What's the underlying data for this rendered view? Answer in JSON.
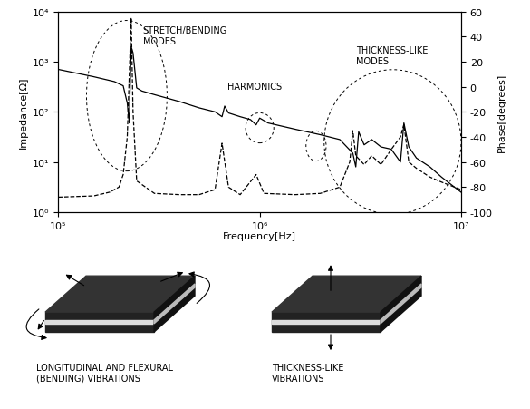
{
  "chart_data": {
    "type": "line",
    "x_label": "Frequency[Hz]",
    "y_label": "Impedance[Ω]",
    "y2_label": "Phase[degrees]",
    "log": true,
    "grid": false,
    "xlim": [
      100000,
      10000000
    ],
    "xticks": [
      {
        "value": 100000,
        "label": "10⁵"
      },
      {
        "value": 1000000,
        "label": "10⁶"
      },
      {
        "value": 10000000,
        "label": "10⁷"
      }
    ],
    "ylim": [
      1,
      10000
    ],
    "yticks": [
      {
        "value": 1,
        "label": "10⁰"
      },
      {
        "value": 10,
        "label": "10¹"
      },
      {
        "value": 100,
        "label": "10²"
      },
      {
        "value": 1000,
        "label": "10³"
      },
      {
        "value": 10000,
        "label": "10⁴"
      }
    ],
    "y2lim": [
      -100,
      60
    ],
    "y2ticks": [
      -100,
      -80,
      -60,
      -40,
      -20,
      0,
      20,
      40,
      60
    ],
    "annotations": [
      "STRETCH/BENDING\nMODES",
      "HARMONICS",
      "THICKNESS-LIKE\nMODES"
    ],
    "series": [
      {
        "color": "#000000",
        "line_style": "solid",
        "x": [
          100000,
          150000,
          190000,
          210000,
          220000,
          225000,
          230000,
          235000,
          245000,
          260000,
          300000,
          400000,
          500000,
          600000,
          650000,
          670000,
          700000,
          800000,
          900000,
          960000,
          1000000,
          1100000,
          1500000,
          2000000,
          2500000,
          2900000,
          3000000,
          3100000,
          3300000,
          3600000,
          4000000,
          4500000,
          5000000,
          5200000,
          5500000,
          6000000,
          7000000,
          8000000,
          10000000
        ],
        "values": [
          700,
          500,
          400,
          330,
          150,
          60,
          2000,
          1500,
          300,
          260,
          220,
          160,
          120,
          100,
          80,
          130,
          95,
          80,
          70,
          55,
          75,
          60,
          45,
          35,
          28,
          15,
          8,
          40,
          22,
          28,
          20,
          18,
          10,
          60,
          20,
          12,
          8,
          5,
          2.5
        ]
      },
      {
        "color": "#000000",
        "line_style": "dashed",
        "axis": "y2",
        "x": [
          100000,
          150000,
          180000,
          200000,
          210000,
          220000,
          230000,
          235000,
          245000,
          300000,
          400000,
          500000,
          600000,
          650000,
          700000,
          800000,
          960000,
          1050000,
          1500000,
          2000000,
          2500000,
          2800000,
          2900000,
          3000000,
          3300000,
          3600000,
          4000000,
          4500000,
          5000000,
          5200000,
          5500000,
          6000000,
          7000000,
          8000000,
          10000000
        ],
        "values": [
          -88,
          -87,
          -84,
          -80,
          -70,
          -40,
          55,
          -20,
          -75,
          -85,
          -86,
          -86,
          -82,
          -45,
          -80,
          -86,
          -70,
          -85,
          -86,
          -85,
          -80,
          -60,
          -35,
          -55,
          -62,
          -55,
          -62,
          -50,
          -40,
          -30,
          -60,
          -65,
          -72,
          -76,
          -82
        ]
      }
    ]
  },
  "diagram": {
    "panels": [
      {
        "caption": "LONGITUDINAL AND FLEXURAL\n(BENDING) VIBRATIONS"
      },
      {
        "caption": "THICKNESS-LIKE\nVIBRATIONS"
      }
    ]
  }
}
